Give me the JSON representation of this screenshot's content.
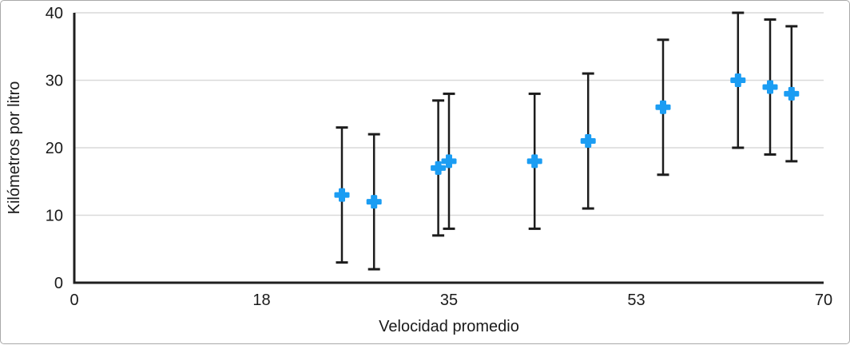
{
  "figure": {
    "background": "#ffffff",
    "border_color": "#a9a9a9"
  },
  "chart_data": {
    "type": "scatter",
    "title": "",
    "xlabel": "Velocidad promedio",
    "ylabel": "Kilómetros por litro",
    "xlim": [
      0,
      70
    ],
    "ylim": [
      0,
      40
    ],
    "grid": "horizontal",
    "legend": "none",
    "x_ticks": [
      {
        "value": 0,
        "label": "0"
      },
      {
        "value": 17.5,
        "label": "18"
      },
      {
        "value": 35,
        "label": "35"
      },
      {
        "value": 52.5,
        "label": "53"
      },
      {
        "value": 70,
        "label": "70"
      }
    ],
    "y_ticks": [
      {
        "value": 0,
        "label": "0"
      },
      {
        "value": 10,
        "label": "10"
      },
      {
        "value": 20,
        "label": "20"
      },
      {
        "value": 30,
        "label": "30"
      },
      {
        "value": 40,
        "label": "40"
      }
    ],
    "series": [
      {
        "name": "Kilómetros por litro",
        "marker": "plus",
        "marker_color": "#1b9df3",
        "error_bar_color": "#1c1c1c",
        "error_bars": {
          "mode": "fixed",
          "plus": 10,
          "minus": 10
        },
        "points": [
          {
            "x": 25,
            "y": 13,
            "error_low": 3,
            "error_high": 23
          },
          {
            "x": 28,
            "y": 12,
            "error_low": 2,
            "error_high": 22
          },
          {
            "x": 34,
            "y": 17,
            "error_low": 7,
            "error_high": 27
          },
          {
            "x": 35,
            "y": 18,
            "error_low": 8,
            "error_high": 28
          },
          {
            "x": 43,
            "y": 18,
            "error_low": 8,
            "error_high": 28
          },
          {
            "x": 48,
            "y": 21,
            "error_low": 11,
            "error_high": 31
          },
          {
            "x": 55,
            "y": 26,
            "error_low": 16,
            "error_high": 36
          },
          {
            "x": 62,
            "y": 30,
            "error_low": 20,
            "error_high": 40
          },
          {
            "x": 65,
            "y": 29,
            "error_low": 19,
            "error_high": 39
          },
          {
            "x": 67,
            "y": 28,
            "error_low": 18,
            "error_high": 38
          }
        ]
      }
    ],
    "colors": {
      "axis": "#1f1f1f",
      "gridline": "#d9d9d9",
      "text": "#1a1a1a"
    }
  }
}
